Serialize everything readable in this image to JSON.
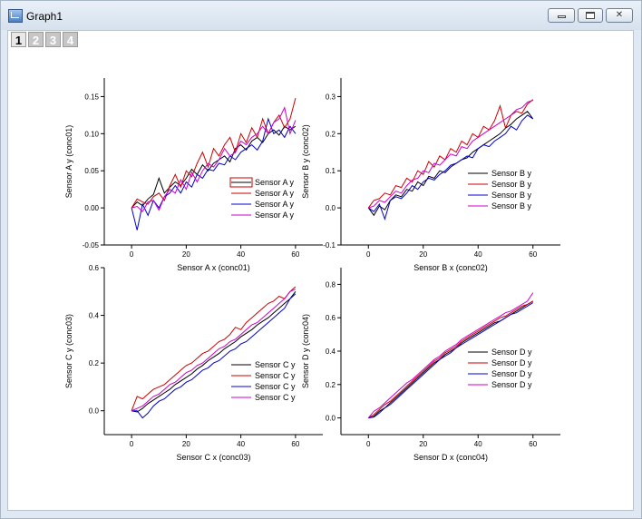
{
  "window": {
    "title": "Graph1",
    "icon": "graph-window-icon",
    "controls": [
      "minimize-icon",
      "restore-icon",
      "close-icon"
    ]
  },
  "layer_tabs": [
    "1",
    "2",
    "3",
    "4"
  ],
  "active_layer": "1",
  "chart_data": [
    {
      "type": "line",
      "xlabel": "Sensor A x (conc01)",
      "ylabel": "Sensor A y (conc01)",
      "xlim": [
        -10,
        70
      ],
      "ylim": [
        -0.05,
        0.175
      ],
      "xticks": [
        0,
        20,
        40,
        60
      ],
      "yticks": [
        -0.05,
        0.0,
        0.05,
        0.1,
        0.15
      ],
      "ytick_labels": [
        "-0.05",
        "0.00",
        "0.05",
        "0.10",
        "0.15"
      ],
      "legend": "bottom-right",
      "x": [
        0,
        2,
        4,
        6,
        8,
        10,
        12,
        14,
        16,
        18,
        20,
        22,
        24,
        26,
        28,
        30,
        32,
        34,
        36,
        38,
        40,
        42,
        44,
        46,
        48,
        50,
        52,
        54,
        56,
        58,
        60
      ],
      "series": [
        {
          "name": "Sensor A y",
          "color": "#000000",
          "values": [
            0.0,
            0.008,
            0.003,
            0.012,
            0.018,
            0.04,
            0.02,
            0.028,
            0.035,
            0.03,
            0.04,
            0.052,
            0.045,
            0.058,
            0.05,
            0.06,
            0.065,
            0.07,
            0.062,
            0.08,
            0.085,
            0.078,
            0.09,
            0.095,
            0.088,
            0.1,
            0.105,
            0.098,
            0.11,
            0.105,
            0.11
          ]
        },
        {
          "name": "Sensor A y",
          "color": "#cc0000",
          "values": [
            0.0,
            0.012,
            0.008,
            0.005,
            0.015,
            0.02,
            0.01,
            0.03,
            0.045,
            0.028,
            0.05,
            0.042,
            0.06,
            0.075,
            0.055,
            0.08,
            0.07,
            0.085,
            0.095,
            0.075,
            0.1,
            0.088,
            0.108,
            0.095,
            0.12,
            0.1,
            0.115,
            0.125,
            0.108,
            0.12,
            0.148
          ]
        },
        {
          "name": "Sensor A y",
          "color": "#0000cc",
          "values": [
            0.0,
            -0.03,
            0.005,
            -0.01,
            0.01,
            0.0,
            0.015,
            0.02,
            0.03,
            0.02,
            0.035,
            0.028,
            0.045,
            0.04,
            0.052,
            0.05,
            0.06,
            0.058,
            0.07,
            0.065,
            0.075,
            0.08,
            0.085,
            0.078,
            0.09,
            0.12,
            0.1,
            0.105,
            0.095,
            0.11,
            0.1
          ]
        },
        {
          "name": "Sensor A y",
          "color": "#cc00cc",
          "values": [
            0.0,
            0.002,
            -0.005,
            0.008,
            0.01,
            -0.003,
            0.015,
            0.025,
            0.02,
            0.038,
            0.025,
            0.048,
            0.035,
            0.05,
            0.06,
            0.055,
            0.065,
            0.08,
            0.07,
            0.075,
            0.09,
            0.085,
            0.095,
            0.1,
            0.11,
            0.1,
            0.115,
            0.12,
            0.135,
            0.1,
            0.118
          ]
        }
      ]
    },
    {
      "type": "line",
      "xlabel": "Sensor B x (conc02)",
      "ylabel": "Sensor B y (conc02)",
      "xlim": [
        -10,
        70
      ],
      "ylim": [
        -0.1,
        0.35
      ],
      "xticks": [
        0,
        20,
        40,
        60
      ],
      "yticks": [
        -0.1,
        0.0,
        0.1,
        0.2,
        0.3
      ],
      "ytick_labels": [
        "-0.1",
        "0.0",
        "0.1",
        "0.2",
        "0.3"
      ],
      "legend": "right",
      "x": [
        0,
        2,
        4,
        6,
        8,
        10,
        12,
        14,
        16,
        18,
        20,
        22,
        24,
        26,
        28,
        30,
        32,
        34,
        36,
        38,
        40,
        42,
        44,
        46,
        48,
        50,
        52,
        54,
        56,
        58,
        60
      ],
      "series": [
        {
          "name": "Sensor B y",
          "color": "#000000",
          "values": [
            0.0,
            -0.02,
            0.005,
            -0.005,
            0.02,
            0.035,
            0.03,
            0.05,
            0.045,
            0.07,
            0.06,
            0.085,
            0.08,
            0.1,
            0.095,
            0.11,
            0.12,
            0.13,
            0.135,
            0.15,
            0.16,
            0.17,
            0.18,
            0.19,
            0.2,
            0.215,
            0.225,
            0.24,
            0.25,
            0.26,
            0.24
          ]
        },
        {
          "name": "Sensor B y",
          "color": "#cc0000",
          "values": [
            0.0,
            0.02,
            0.025,
            0.04,
            0.035,
            0.06,
            0.055,
            0.08,
            0.07,
            0.1,
            0.09,
            0.125,
            0.11,
            0.14,
            0.13,
            0.16,
            0.15,
            0.18,
            0.17,
            0.2,
            0.19,
            0.22,
            0.21,
            0.235,
            0.275,
            0.215,
            0.25,
            0.26,
            0.255,
            0.28,
            0.292
          ]
        },
        {
          "name": "Sensor B y",
          "color": "#0000cc",
          "values": [
            0.0,
            -0.01,
            0.01,
            -0.03,
            0.02,
            0.03,
            0.025,
            0.04,
            0.06,
            0.05,
            0.07,
            0.08,
            0.075,
            0.09,
            0.1,
            0.115,
            0.12,
            0.13,
            0.14,
            0.135,
            0.16,
            0.17,
            0.165,
            0.18,
            0.19,
            0.2,
            0.22,
            0.21,
            0.235,
            0.25,
            0.24
          ]
        },
        {
          "name": "Sensor B y",
          "color": "#cc00cc",
          "values": [
            0.0,
            0.005,
            0.02,
            0.015,
            0.03,
            0.045,
            0.04,
            0.06,
            0.075,
            0.08,
            0.1,
            0.095,
            0.12,
            0.115,
            0.13,
            0.145,
            0.14,
            0.165,
            0.16,
            0.18,
            0.19,
            0.2,
            0.21,
            0.22,
            0.23,
            0.24,
            0.25,
            0.265,
            0.27,
            0.285,
            0.29
          ]
        }
      ]
    },
    {
      "type": "line",
      "xlabel": "Sensor C x (conc03)",
      "ylabel": "Sensor C y (conc03)",
      "xlim": [
        -10,
        70
      ],
      "ylim": [
        -0.1,
        0.6
      ],
      "xticks": [
        0,
        20,
        40,
        60
      ],
      "yticks": [
        0.0,
        0.2,
        0.4,
        0.6
      ],
      "ytick_labels": [
        "0.0",
        "0.2",
        "0.4",
        "0.6"
      ],
      "legend": "bottom-right",
      "x": [
        0,
        2,
        4,
        6,
        8,
        10,
        12,
        14,
        16,
        18,
        20,
        22,
        24,
        26,
        28,
        30,
        32,
        34,
        36,
        38,
        40,
        42,
        44,
        46,
        48,
        50,
        52,
        54,
        56,
        58,
        60
      ],
      "series": [
        {
          "name": "Sensor C y",
          "color": "#000000",
          "values": [
            0.0,
            -0.005,
            0.01,
            0.03,
            0.045,
            0.06,
            0.075,
            0.09,
            0.11,
            0.125,
            0.14,
            0.155,
            0.175,
            0.19,
            0.21,
            0.225,
            0.24,
            0.26,
            0.275,
            0.29,
            0.31,
            0.325,
            0.34,
            0.36,
            0.375,
            0.39,
            0.41,
            0.43,
            0.45,
            0.47,
            0.5
          ]
        },
        {
          "name": "Sensor C y",
          "color": "#cc0000",
          "values": [
            0.0,
            0.06,
            0.05,
            0.07,
            0.09,
            0.1,
            0.11,
            0.13,
            0.15,
            0.17,
            0.19,
            0.2,
            0.22,
            0.24,
            0.25,
            0.27,
            0.29,
            0.3,
            0.32,
            0.35,
            0.34,
            0.37,
            0.39,
            0.41,
            0.43,
            0.45,
            0.46,
            0.48,
            0.47,
            0.5,
            0.52
          ]
        },
        {
          "name": "Sensor C y",
          "color": "#0000cc",
          "values": [
            0.0,
            0.0,
            -0.03,
            -0.01,
            0.02,
            0.04,
            0.05,
            0.07,
            0.09,
            0.1,
            0.12,
            0.13,
            0.15,
            0.17,
            0.18,
            0.2,
            0.21,
            0.23,
            0.25,
            0.26,
            0.28,
            0.29,
            0.31,
            0.33,
            0.35,
            0.37,
            0.39,
            0.41,
            0.43,
            0.47,
            0.49
          ]
        },
        {
          "name": "Sensor C y",
          "color": "#cc00cc",
          "values": [
            0.0,
            0.01,
            0.02,
            0.04,
            0.06,
            0.07,
            0.09,
            0.11,
            0.12,
            0.14,
            0.16,
            0.17,
            0.19,
            0.2,
            0.22,
            0.24,
            0.26,
            0.27,
            0.29,
            0.3,
            0.32,
            0.34,
            0.36,
            0.37,
            0.39,
            0.41,
            0.43,
            0.45,
            0.47,
            0.5,
            0.51
          ]
        }
      ]
    },
    {
      "type": "line",
      "xlabel": "Sensor D x (conc04)",
      "ylabel": "Sensor D y (conc04)",
      "xlim": [
        -10,
        70
      ],
      "ylim": [
        -0.1,
        0.9
      ],
      "xticks": [
        0,
        20,
        40,
        60
      ],
      "yticks": [
        0.0,
        0.2,
        0.4,
        0.6,
        0.8
      ],
      "ytick_labels": [
        "0.0",
        "0.2",
        "0.4",
        "0.6",
        "0.8"
      ],
      "legend": "right",
      "x": [
        0,
        2,
        4,
        6,
        8,
        10,
        12,
        14,
        16,
        18,
        20,
        22,
        24,
        26,
        28,
        30,
        32,
        34,
        36,
        38,
        40,
        42,
        44,
        46,
        48,
        50,
        52,
        54,
        56,
        58,
        60
      ],
      "series": [
        {
          "name": "Sensor D y",
          "color": "#000000",
          "values": [
            0.0,
            0.01,
            0.04,
            0.06,
            0.09,
            0.12,
            0.15,
            0.18,
            0.21,
            0.24,
            0.27,
            0.3,
            0.33,
            0.35,
            0.38,
            0.4,
            0.42,
            0.45,
            0.47,
            0.49,
            0.51,
            0.53,
            0.55,
            0.57,
            0.58,
            0.6,
            0.62,
            0.64,
            0.66,
            0.68,
            0.7
          ]
        },
        {
          "name": "Sensor D y",
          "color": "#cc0000",
          "values": [
            0.0,
            0.02,
            0.05,
            0.08,
            0.1,
            0.13,
            0.16,
            0.19,
            0.22,
            0.25,
            0.28,
            0.31,
            0.34,
            0.36,
            0.39,
            0.41,
            0.43,
            0.46,
            0.48,
            0.5,
            0.52,
            0.54,
            0.56,
            0.58,
            0.6,
            0.61,
            0.63,
            0.65,
            0.67,
            0.68,
            0.7
          ]
        },
        {
          "name": "Sensor D y",
          "color": "#0000cc",
          "values": [
            0.0,
            0.005,
            0.03,
            0.06,
            0.08,
            0.11,
            0.14,
            0.17,
            0.2,
            0.23,
            0.26,
            0.29,
            0.32,
            0.35,
            0.37,
            0.39,
            0.42,
            0.44,
            0.46,
            0.48,
            0.5,
            0.52,
            0.54,
            0.56,
            0.58,
            0.6,
            0.62,
            0.63,
            0.65,
            0.67,
            0.69
          ]
        },
        {
          "name": "Sensor D y",
          "color": "#cc00cc",
          "values": [
            0.0,
            0.04,
            0.06,
            0.09,
            0.12,
            0.15,
            0.18,
            0.21,
            0.23,
            0.26,
            0.29,
            0.32,
            0.35,
            0.37,
            0.4,
            0.42,
            0.44,
            0.47,
            0.49,
            0.51,
            0.53,
            0.55,
            0.57,
            0.59,
            0.61,
            0.63,
            0.64,
            0.66,
            0.68,
            0.7,
            0.75
          ]
        }
      ]
    }
  ]
}
